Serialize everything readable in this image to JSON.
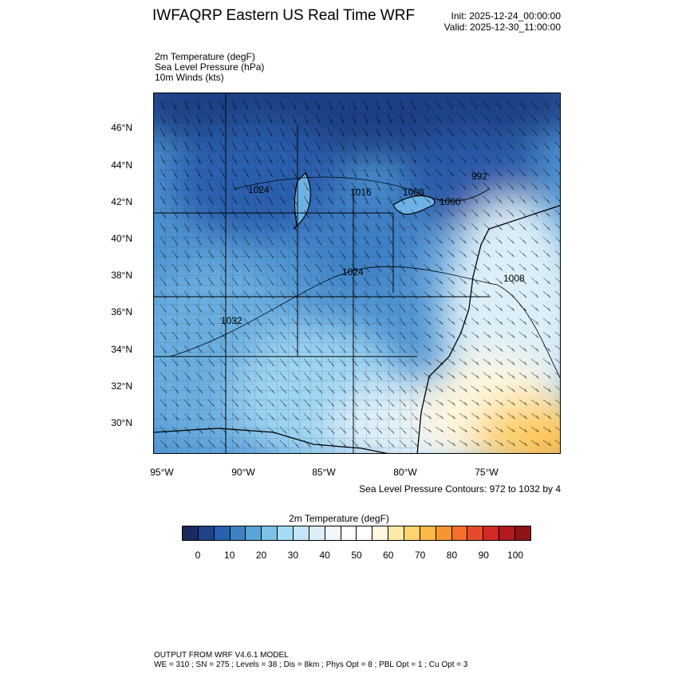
{
  "header": {
    "title": "IWFAQRP Eastern US Real Time WRF",
    "init": "Init: 2025-12-24_00:00:00",
    "valid": "Valid: 2025-12-30_11:00:00"
  },
  "fields": [
    "2m Temperature   (degF)",
    "Sea Level Pressure   (hPa)",
    "10m Winds   (kts)"
  ],
  "axes": {
    "lat_labels": [
      "46°N",
      "44°N",
      "42°N",
      "40°N",
      "38°N",
      "36°N",
      "34°N",
      "32°N",
      "30°N"
    ],
    "lon_labels": [
      "95°W",
      "90°W",
      "85°W",
      "80°W",
      "75°W"
    ]
  },
  "pressure_labels": [
    "1024",
    "1016",
    "1008",
    "1000",
    "992",
    "1024",
    "1008",
    "1032"
  ],
  "slp_note": "Sea Level Pressure Contours: 972 to 1032 by 4",
  "colorbar": {
    "title": "2m Temperature  (degF)",
    "labels": [
      "0",
      "10",
      "20",
      "30",
      "40",
      "50",
      "60",
      "70",
      "80",
      "90",
      "100"
    ],
    "colors": [
      "#1b2a5e",
      "#1f4389",
      "#2861b0",
      "#3f82c2",
      "#59a4d8",
      "#7cc2e6",
      "#a4dcf5",
      "#c2e6f5",
      "#dceff8",
      "#f0f8fc",
      "#ffffff",
      "#ffffff",
      "#fff7e0",
      "#fdeaa8",
      "#fed370",
      "#fdb845",
      "#f99530",
      "#f46f2a",
      "#e54b2b",
      "#d42a27",
      "#b3191f",
      "#8e1418"
    ]
  },
  "footer": {
    "line1": "OUTPUT FROM WRF V4.6.1 MODEL",
    "line2": "WE = 310 ; SN = 275 ; Levels = 38 ; Dis = 8km ; Phys Opt = 8 ; PBL Opt = 1 ; Cu Opt = 3"
  }
}
